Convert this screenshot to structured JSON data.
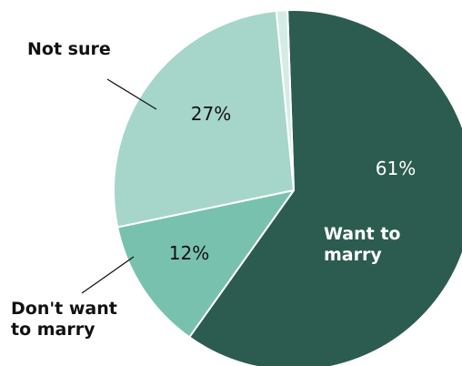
{
  "chart_data": {
    "type": "pie",
    "start_angle_deg": -2,
    "direction": "clockwise",
    "slices": [
      {
        "label_lines": [
          "Want to",
          "marry"
        ],
        "value": 61,
        "value_label": "61%",
        "color": "#2c5c4f"
      },
      {
        "label_lines": [
          "Don't want",
          "to marry"
        ],
        "value": 12,
        "value_label": "12%",
        "color": "#78c1ae"
      },
      {
        "label_lines": [
          "Not sure"
        ],
        "value": 27,
        "value_label": "27%",
        "color": "#a6d6c9"
      },
      {
        "label_lines": [],
        "value": 1,
        "value_label": "",
        "color": "#d4ece5"
      }
    ]
  }
}
